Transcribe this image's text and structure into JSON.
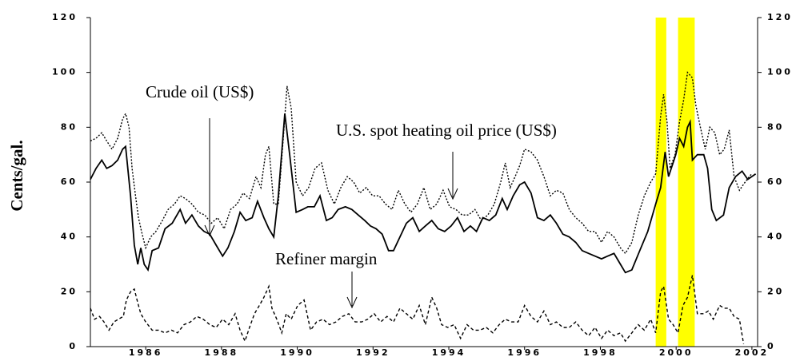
{
  "chart_data": {
    "type": "line",
    "y_label": "Cents/gal.",
    "xlim": [
      1984.54,
      2002.15
    ],
    "xticks": [
      1986,
      1988,
      1990,
      1992,
      1994,
      1996,
      1998,
      2000,
      2002
    ],
    "ylim": [
      0,
      120
    ],
    "yticks": [
      0,
      20,
      40,
      60,
      80,
      100,
      120
    ],
    "y2lim": [
      0,
      120
    ],
    "y2ticks": [
      0,
      20,
      40,
      60,
      80,
      100,
      120
    ],
    "shaded_periods": [
      [
        1999.46,
        1999.74
      ],
      [
        2000.05,
        2000.49
      ]
    ],
    "shade_color": "#ffff00",
    "series": [
      {
        "name": "Crude oil (US$)",
        "color": "#000000",
        "line_style": "solid",
        "x": [
          1984.54,
          1984.69,
          1984.84,
          1984.97,
          1985.11,
          1985.26,
          1985.39,
          1985.47,
          1985.6,
          1985.7,
          1985.79,
          1985.87,
          1985.96,
          1986.06,
          1986.17,
          1986.34,
          1986.51,
          1986.7,
          1986.91,
          1987.05,
          1987.22,
          1987.39,
          1987.54,
          1987.69,
          1987.86,
          1988.03,
          1988.17,
          1988.34,
          1988.49,
          1988.64,
          1988.81,
          1988.95,
          1989.12,
          1989.25,
          1989.38,
          1989.5,
          1989.67,
          1989.8,
          1989.97,
          1990.14,
          1990.28,
          1990.45,
          1990.6,
          1990.77,
          1990.92,
          1991.08,
          1991.27,
          1991.44,
          1991.61,
          1991.78,
          1991.93,
          1992.08,
          1992.24,
          1992.41,
          1992.54,
          1992.71,
          1992.88,
          1993.05,
          1993.22,
          1993.38,
          1993.55,
          1993.72,
          1993.89,
          1994.06,
          1994.23,
          1994.4,
          1994.57,
          1994.73,
          1994.9,
          1995.07,
          1995.24,
          1995.41,
          1995.54,
          1995.7,
          1995.87,
          1996.0,
          1996.17,
          1996.34,
          1996.51,
          1996.68,
          1996.84,
          1997.01,
          1997.18,
          1997.35,
          1997.52,
          1997.69,
          1997.86,
          1998.03,
          1998.19,
          1998.36,
          1998.53,
          1998.66,
          1998.83,
          1999.04,
          1999.25,
          1999.46,
          1999.59,
          1999.71,
          1999.8,
          1999.99,
          2000.09,
          2000.2,
          2000.3,
          2000.37,
          2000.43,
          2000.56,
          2000.73,
          2000.83,
          2000.94,
          2001.06,
          2001.25,
          2001.4,
          2001.57,
          2001.74,
          2001.89,
          2002.1
        ],
        "values": [
          61,
          65,
          68,
          65,
          66,
          68,
          72,
          73,
          55,
          37,
          30,
          36,
          30,
          28,
          35,
          36,
          43,
          45,
          50,
          45,
          48,
          44,
          42,
          41,
          37,
          33,
          36,
          42,
          49,
          46,
          47,
          53,
          47,
          43,
          40,
          55,
          85,
          70,
          49,
          50,
          51,
          51,
          55,
          46,
          47,
          50,
          51,
          50,
          48,
          46,
          44,
          43,
          41,
          35,
          35,
          40,
          45,
          47,
          42,
          44,
          46,
          43,
          42,
          44,
          47,
          42,
          44,
          42,
          47,
          46,
          48,
          54,
          50,
          55,
          59,
          60,
          56,
          47,
          46,
          48,
          45,
          41,
          40,
          38,
          35,
          34,
          33,
          32,
          33,
          34,
          30,
          27,
          28,
          35,
          42,
          52,
          58,
          71,
          62,
          70,
          76,
          73,
          80,
          82,
          68,
          70,
          70,
          65,
          50,
          46,
          48,
          58,
          62,
          64,
          61,
          63
        ]
      },
      {
        "name": "U.S. spot heating oil price (US$)",
        "color": "#000000",
        "line_style": "dotted",
        "x": [
          1984.54,
          1984.69,
          1984.84,
          1984.97,
          1985.11,
          1985.26,
          1985.39,
          1985.47,
          1985.56,
          1985.64,
          1985.73,
          1985.81,
          1985.89,
          1986.0,
          1986.13,
          1986.27,
          1986.44,
          1986.59,
          1986.76,
          1986.91,
          1987.05,
          1987.22,
          1987.39,
          1987.56,
          1987.73,
          1987.9,
          1988.07,
          1988.24,
          1988.41,
          1988.57,
          1988.74,
          1988.91,
          1989.04,
          1989.16,
          1989.25,
          1989.38,
          1989.5,
          1989.63,
          1989.73,
          1989.84,
          1989.97,
          1990.14,
          1990.3,
          1990.47,
          1990.64,
          1990.81,
          1990.98,
          1991.15,
          1991.32,
          1991.49,
          1991.65,
          1991.82,
          1991.99,
          1992.16,
          1992.33,
          1992.5,
          1992.67,
          1992.84,
          1993.0,
          1993.17,
          1993.34,
          1993.51,
          1993.68,
          1993.85,
          1994.02,
          1994.19,
          1994.35,
          1994.52,
          1994.69,
          1994.86,
          1995.03,
          1995.2,
          1995.37,
          1995.49,
          1995.62,
          1995.75,
          1995.87,
          1996.0,
          1996.17,
          1996.34,
          1996.51,
          1996.68,
          1996.84,
          1997.01,
          1997.18,
          1997.35,
          1997.52,
          1997.69,
          1997.86,
          1998.03,
          1998.19,
          1998.36,
          1998.53,
          1998.66,
          1998.83,
          1999.0,
          1999.16,
          1999.33,
          1999.46,
          1999.59,
          1999.67,
          1999.76,
          1999.84,
          1999.97,
          2000.09,
          2000.2,
          2000.3,
          2000.43,
          2000.52,
          2000.64,
          2000.77,
          2000.89,
          2001.02,
          2001.15,
          2001.27,
          2001.4,
          2001.53,
          2001.67,
          2001.82,
          2001.99
        ],
        "values": [
          75,
          76,
          78,
          75,
          72,
          76,
          83,
          85,
          80,
          65,
          55,
          47,
          42,
          36,
          40,
          42,
          46,
          50,
          52,
          55,
          54,
          52,
          49,
          48,
          45,
          47,
          43,
          50,
          52,
          56,
          54,
          62,
          58,
          70,
          73,
          52,
          52,
          76,
          95,
          87,
          60,
          55,
          58,
          65,
          67,
          57,
          52,
          58,
          62,
          60,
          56,
          58,
          55,
          55,
          52,
          50,
          57,
          52,
          49,
          52,
          58,
          50,
          52,
          57,
          51,
          50,
          48,
          48,
          50,
          46,
          48,
          52,
          60,
          67,
          58,
          62,
          66,
          72,
          71,
          68,
          62,
          55,
          57,
          56,
          50,
          47,
          45,
          42,
          42,
          38,
          42,
          40,
          36,
          34,
          38,
          48,
          55,
          60,
          63,
          84,
          92,
          82,
          65,
          70,
          82,
          90,
          100,
          98,
          88,
          80,
          72,
          80,
          78,
          70,
          72,
          79,
          62,
          57,
          60,
          63
        ]
      },
      {
        "name": "Refiner margin",
        "color": "#000000",
        "line_style": "dashed",
        "x": [
          1984.54,
          1984.65,
          1984.78,
          1984.9,
          1985.03,
          1985.16,
          1985.28,
          1985.41,
          1985.49,
          1985.6,
          1985.7,
          1985.79,
          1985.87,
          1986.0,
          1986.17,
          1986.34,
          1986.51,
          1986.68,
          1986.84,
          1987.01,
          1987.18,
          1987.35,
          1987.52,
          1987.69,
          1987.86,
          1988.03,
          1988.19,
          1988.36,
          1988.49,
          1988.62,
          1988.74,
          1988.87,
          1989.0,
          1989.12,
          1989.25,
          1989.33,
          1989.46,
          1989.59,
          1989.71,
          1989.84,
          1990.01,
          1990.18,
          1990.35,
          1990.51,
          1990.68,
          1990.85,
          1991.02,
          1991.19,
          1991.36,
          1991.53,
          1991.7,
          1991.86,
          1992.03,
          1992.2,
          1992.37,
          1992.54,
          1992.71,
          1992.88,
          1993.05,
          1993.22,
          1993.38,
          1993.55,
          1993.68,
          1993.81,
          1993.97,
          1994.14,
          1994.31,
          1994.48,
          1994.65,
          1994.82,
          1994.99,
          1995.16,
          1995.33,
          1995.49,
          1995.66,
          1995.83,
          1996.0,
          1996.17,
          1996.34,
          1996.51,
          1996.68,
          1996.84,
          1997.01,
          1997.18,
          1997.35,
          1997.52,
          1997.69,
          1997.86,
          1998.03,
          1998.19,
          1998.36,
          1998.53,
          1998.66,
          1998.83,
          1999.0,
          1999.16,
          1999.33,
          1999.46,
          1999.59,
          1999.67,
          1999.8,
          1999.92,
          2000.05,
          2000.18,
          2000.3,
          2000.43,
          2000.56,
          2000.73,
          2000.85,
          2000.98,
          2001.15,
          2001.27,
          2001.4,
          2001.53,
          2001.67,
          2001.78
        ],
        "values": [
          14,
          10,
          11,
          9,
          6,
          9,
          10,
          11,
          17,
          20,
          21,
          16,
          12,
          9,
          6,
          6,
          5,
          6,
          5,
          8,
          9,
          11,
          10,
          8,
          7,
          10,
          8,
          12,
          6,
          2,
          7,
          12,
          15,
          18,
          22,
          14,
          10,
          5,
          12,
          10,
          15,
          17,
          6,
          9,
          10,
          8,
          9,
          11,
          12,
          9,
          9,
          10,
          12,
          9,
          11,
          9,
          14,
          12,
          10,
          15,
          8,
          18,
          14,
          8,
          7,
          8,
          3,
          8,
          6,
          6,
          7,
          5,
          8,
          10,
          9,
          9,
          15,
          11,
          9,
          13,
          8,
          9,
          7,
          7,
          9,
          6,
          4,
          7,
          3,
          6,
          4,
          5,
          2,
          5,
          8,
          6,
          10,
          5,
          20,
          22,
          10,
          8,
          5,
          15,
          18,
          26,
          12,
          12,
          13,
          10,
          15,
          14,
          14,
          11,
          10,
          1
        ]
      }
    ]
  }
}
